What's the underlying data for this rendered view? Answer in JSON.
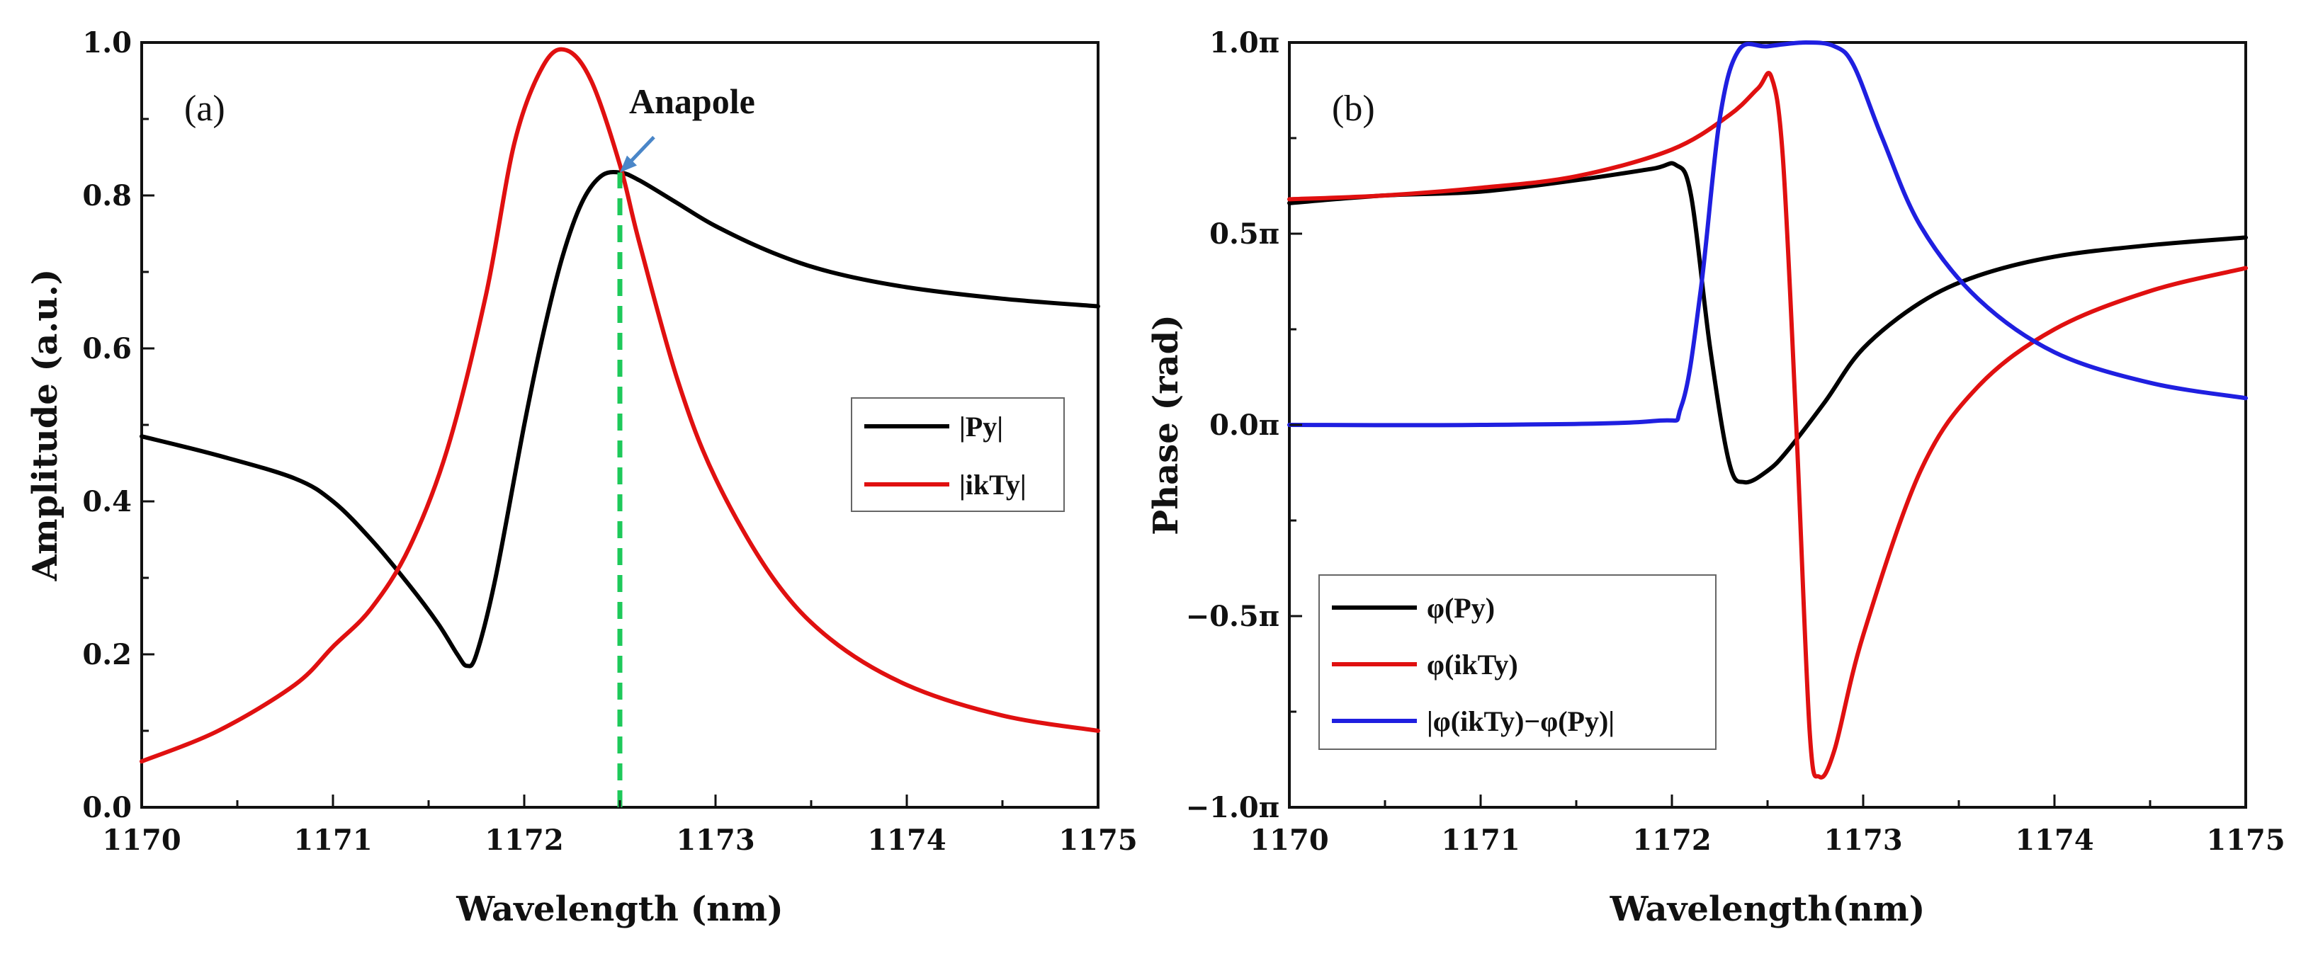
{
  "chart_data": [
    {
      "type": "line",
      "panel_label": "(a)",
      "xlabel": "Wavelength (nm)",
      "ylabel": "Amplitude (a.u.)",
      "xlim": [
        1170,
        1175
      ],
      "ylim": [
        0,
        1.0
      ],
      "xticks": [
        1170,
        1171,
        1172,
        1173,
        1174,
        1175
      ],
      "xtick_labels": [
        "1170",
        "1171",
        "1172",
        "1173",
        "1174",
        "1175"
      ],
      "yticks": [
        0,
        0.2,
        0.4,
        0.6,
        0.8,
        1.0
      ],
      "ytick_labels": [
        "0.0",
        "0.2",
        "0.4",
        "0.6",
        "0.8",
        "1.0"
      ],
      "legend_position": "center-right",
      "series": [
        {
          "name": "|Py|",
          "color": "#000000",
          "x": [
            1170,
            1170.4,
            1170.8,
            1171.0,
            1171.2,
            1171.4,
            1171.55,
            1171.65,
            1171.7,
            1171.75,
            1171.85,
            1172.0,
            1172.1,
            1172.2,
            1172.3,
            1172.4,
            1172.5,
            1172.6,
            1172.8,
            1173.0,
            1173.3,
            1173.6,
            1174.0,
            1174.5,
            1175.0
          ],
          "y": [
            0.485,
            0.46,
            0.43,
            0.4,
            0.35,
            0.29,
            0.24,
            0.2,
            0.185,
            0.2,
            0.3,
            0.5,
            0.62,
            0.72,
            0.79,
            0.825,
            0.83,
            0.82,
            0.79,
            0.76,
            0.725,
            0.7,
            0.68,
            0.665,
            0.655
          ]
        },
        {
          "name": "|ikTy|",
          "color": "#e01010",
          "x": [
            1170,
            1170.4,
            1170.8,
            1171.0,
            1171.2,
            1171.4,
            1171.6,
            1171.8,
            1171.95,
            1172.1,
            1172.22,
            1172.35,
            1172.5,
            1172.6,
            1172.8,
            1173.0,
            1173.3,
            1173.6,
            1174.0,
            1174.5,
            1175.0
          ],
          "y": [
            0.06,
            0.1,
            0.16,
            0.21,
            0.26,
            0.34,
            0.47,
            0.67,
            0.87,
            0.97,
            0.99,
            0.95,
            0.84,
            0.74,
            0.56,
            0.43,
            0.3,
            0.22,
            0.16,
            0.12,
            0.1
          ]
        },
        {
          "name": "anapole-marker",
          "color": "#1ec95a",
          "style": "dashed",
          "x": [
            1172.5,
            1172.5
          ],
          "y": [
            0,
            0.83
          ]
        }
      ],
      "annotations": [
        {
          "text": "Anapole",
          "x": 1172.5,
          "y": 0.83
        }
      ]
    },
    {
      "type": "line",
      "panel_label": "(b)",
      "xlabel": "Wavelength(nm)",
      "ylabel": "Phase (rad)",
      "xlim": [
        1170,
        1175
      ],
      "ylim": [
        -1.0,
        1.0
      ],
      "yunit": "π",
      "xticks": [
        1170,
        1171,
        1172,
        1173,
        1174,
        1175
      ],
      "xtick_labels": [
        "1170",
        "1171",
        "1172",
        "1173",
        "1174",
        "1175"
      ],
      "yticks": [
        -1.0,
        -0.5,
        0,
        0.5,
        1.0
      ],
      "ytick_labels": [
        "−1.0π",
        "−0.5π",
        "0.0π",
        "0.5π",
        "1.0π"
      ],
      "legend_position": "bottom-left",
      "series": [
        {
          "name": "φ(Py)",
          "color": "#000000",
          "x": [
            1170,
            1170.5,
            1171.0,
            1171.5,
            1171.9,
            1172.02,
            1172.1,
            1172.2,
            1172.3,
            1172.38,
            1172.5,
            1172.6,
            1172.8,
            1173.0,
            1173.3,
            1173.6,
            1174.0,
            1174.5,
            1175.0
          ],
          "y": [
            0.58,
            0.6,
            0.61,
            0.64,
            0.67,
            0.68,
            0.6,
            0.2,
            -0.1,
            -0.15,
            -0.12,
            -0.07,
            0.06,
            0.2,
            0.32,
            0.39,
            0.44,
            0.47,
            0.49
          ]
        },
        {
          "name": "φ(ikTy)",
          "color": "#e01010",
          "x": [
            1170,
            1170.5,
            1171.0,
            1171.5,
            1172.0,
            1172.3,
            1172.45,
            1172.52,
            1172.58,
            1172.65,
            1172.72,
            1172.77,
            1172.85,
            1173.0,
            1173.3,
            1173.6,
            1174.0,
            1174.5,
            1175.0
          ],
          "y": [
            0.59,
            0.6,
            0.62,
            0.65,
            0.72,
            0.81,
            0.88,
            0.91,
            0.7,
            0.0,
            -0.8,
            -0.92,
            -0.85,
            -0.55,
            -0.12,
            0.1,
            0.25,
            0.35,
            0.41
          ]
        },
        {
          "name": "|φ(ikTy)−φ(Py)|",
          "color": "#1f1fe0",
          "x": [
            1170,
            1171.0,
            1171.9,
            1172.05,
            1172.15,
            1172.25,
            1172.35,
            1172.5,
            1172.7,
            1172.85,
            1172.95,
            1173.1,
            1173.3,
            1173.6,
            1174.0,
            1174.5,
            1175.0
          ],
          "y": [
            0.0,
            0.0,
            0.01,
            0.05,
            0.35,
            0.8,
            0.98,
            0.99,
            1.0,
            0.99,
            0.94,
            0.75,
            0.52,
            0.33,
            0.19,
            0.11,
            0.07
          ]
        }
      ],
      "annotations": []
    }
  ]
}
